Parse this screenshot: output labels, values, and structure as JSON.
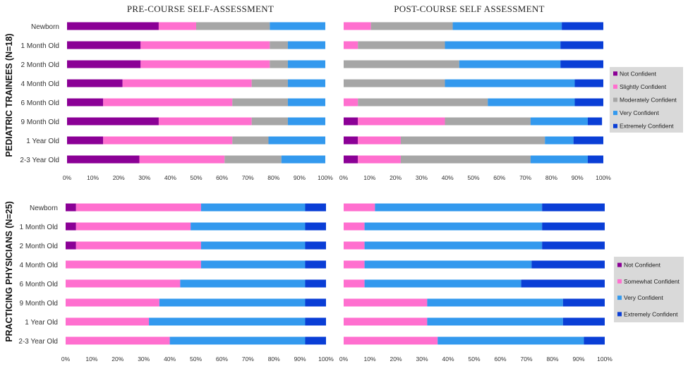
{
  "header": {
    "pre_title": "PRE-COURSE SELF-ASSESSMENT",
    "post_title": "POST-COURSE SELF ASSESSMENT"
  },
  "rows": {
    "trainees_label": "PEDIATRIC TRAINEES (N=18)",
    "physicians_label": "PRACTICING PHYSICIANS (N=25)"
  },
  "colors": {
    "Not Confident": "#8b0096",
    "Slightly Confident": "#ff6fcf",
    "Somewhat Confident": "#ff6fcf",
    "Moderately Confident": "#a6a6a6",
    "Very Confident": "#3399ee",
    "Extremely Confident": "#0a3ed6"
  },
  "chart_data": [
    {
      "type": "bar",
      "orientation": "horizontal",
      "stacked": true,
      "title": "PRE-COURSE SELF-ASSESSMENT",
      "group": "PEDIATRIC TRAINEES (N=18)",
      "categories": [
        "Newborn",
        "1 Month Old",
        "2 Month Old",
        "4 Month Old",
        "6 Month Old",
        "9 Month Old",
        "1 Year Old",
        "2-3 Year Old"
      ],
      "series": [
        {
          "name": "Not Confident",
          "values": [
            35.5,
            28.5,
            28.5,
            21.5,
            14,
            35.5,
            14,
            28
          ]
        },
        {
          "name": "Slightly Confident",
          "values": [
            14.5,
            50,
            50,
            50,
            50,
            36,
            50,
            33
          ]
        },
        {
          "name": "Moderately Confident",
          "values": [
            28.5,
            7,
            7,
            14,
            21.5,
            14,
            14,
            22
          ]
        },
        {
          "name": "Very Confident",
          "values": [
            21.5,
            14.5,
            14.5,
            14.5,
            14.5,
            14.5,
            22,
            17
          ]
        },
        {
          "name": "Extremely Confident",
          "values": [
            0,
            0,
            0,
            0,
            0,
            0,
            0,
            0
          ]
        }
      ],
      "xlim": [
        0,
        100
      ],
      "xticks": [
        "0%",
        "10%",
        "20%",
        "30%",
        "40%",
        "50%",
        "60%",
        "70%",
        "80%",
        "90%",
        "100%"
      ]
    },
    {
      "type": "bar",
      "orientation": "horizontal",
      "stacked": true,
      "title": "POST-COURSE SELF ASSESSMENT",
      "group": "PEDIATRIC TRAINEES (N=18)",
      "categories": [
        "Newborn",
        "1 Month Old",
        "2 Month Old",
        "4 Month Old",
        "6 Month Old",
        "9 Month Old",
        "1 Year Old",
        "2-3 Year Old"
      ],
      "series": [
        {
          "name": "Not Confident",
          "values": [
            0,
            0,
            0,
            0,
            0,
            5.5,
            5.5,
            5.5
          ]
        },
        {
          "name": "Slightly Confident",
          "values": [
            10.5,
            5.5,
            0,
            0,
            5.5,
            33.5,
            16.5,
            16.5
          ]
        },
        {
          "name": "Moderately Confident",
          "values": [
            31.5,
            33.5,
            44.5,
            39,
            50,
            33,
            55.5,
            50
          ]
        },
        {
          "name": "Very Confident",
          "values": [
            42,
            44.5,
            39,
            50,
            33.5,
            22,
            11,
            22
          ]
        },
        {
          "name": "Extremely Confident",
          "values": [
            16,
            16.5,
            16.5,
            11,
            11,
            5.5,
            11.5,
            6
          ]
        }
      ],
      "legend": [
        "Not Confident",
        "Slightly Confident",
        "Moderately Confident",
        "Very Confident",
        "Extremely Confident"
      ],
      "legend_position": "right",
      "xlim": [
        0,
        100
      ],
      "xticks": [
        "0%",
        "10%",
        "20%",
        "30%",
        "40%",
        "50%",
        "60%",
        "70%",
        "80%",
        "90%",
        "100%"
      ]
    },
    {
      "type": "bar",
      "orientation": "horizontal",
      "stacked": true,
      "title": "",
      "group": "PRACTICING PHYSICIANS (N=25)",
      "categories": [
        "Newborn",
        "1 Month Old",
        "2 Month Old",
        "4 Month Old",
        "6 Month Old",
        "9 Month Old",
        "1 Year Old",
        "2-3 Year Old"
      ],
      "series": [
        {
          "name": "Not Confident",
          "values": [
            4,
            4,
            4,
            0,
            0,
            0,
            0,
            0
          ]
        },
        {
          "name": "Somewhat Confident",
          "values": [
            48,
            44,
            48,
            52,
            44,
            36,
            32,
            40
          ]
        },
        {
          "name": "Very Confident",
          "values": [
            40,
            44,
            40,
            40,
            48,
            56,
            60,
            52
          ]
        },
        {
          "name": "Extremely Confident",
          "values": [
            8,
            8,
            8,
            8,
            8,
            8,
            8,
            8
          ]
        }
      ],
      "xlim": [
        0,
        100
      ],
      "xticks": [
        "0%",
        "10%",
        "20%",
        "30%",
        "40%",
        "50%",
        "60%",
        "70%",
        "80%",
        "90%",
        "100%"
      ]
    },
    {
      "type": "bar",
      "orientation": "horizontal",
      "stacked": true,
      "title": "",
      "group": "PRACTICING PHYSICIANS (N=25)",
      "categories": [
        "Newborn",
        "1 Month Old",
        "2 Month Old",
        "4 Month Old",
        "6 Month Old",
        "9 Month Old",
        "1 Year Old",
        "2-3 Year Old"
      ],
      "series": [
        {
          "name": "Not Confident",
          "values": [
            0,
            0,
            0,
            0,
            0,
            0,
            0,
            0
          ]
        },
        {
          "name": "Somewhat Confident",
          "values": [
            12,
            8,
            8,
            8,
            8,
            32,
            32,
            36
          ]
        },
        {
          "name": "Very Confident",
          "values": [
            64,
            68,
            68,
            64,
            60,
            52,
            52,
            56
          ]
        },
        {
          "name": "Extremely Confident",
          "values": [
            24,
            24,
            24,
            28,
            32,
            16,
            16,
            8
          ]
        }
      ],
      "legend": [
        "Not Confident",
        "Somewhat Confident",
        "Very Confident",
        "Extremely Confident"
      ],
      "legend_position": "right",
      "xlim": [
        0,
        100
      ],
      "xticks": [
        "0%",
        "10%",
        "20%",
        "30%",
        "40%",
        "50%",
        "60%",
        "70%",
        "80%",
        "90%",
        "100%"
      ]
    }
  ]
}
